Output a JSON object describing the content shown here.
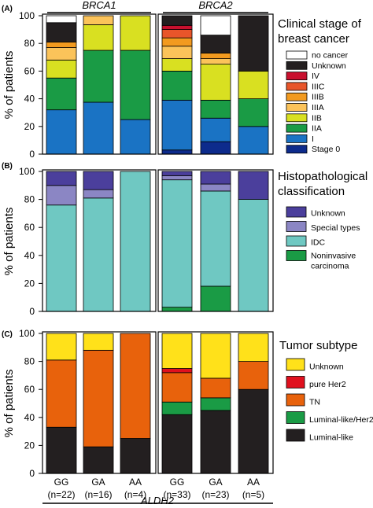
{
  "chart_data": [
    {
      "type": "bar",
      "panel": "(A)",
      "title": "",
      "ylabel": "% of patients",
      "ylim": [
        0,
        100
      ],
      "yticks": [
        "0",
        "20",
        "40",
        "60",
        "80",
        "100"
      ],
      "legend_title": "Clinical stage of breast cancer",
      "groups": [
        {
          "label": "BRCA1",
          "categories": [
            "GG",
            "GA",
            "AA"
          ]
        },
        {
          "label": "BRCA2",
          "categories": [
            "GG",
            "GA",
            "AA"
          ]
        }
      ],
      "series": [
        {
          "name": "Stage 0",
          "color": "#0d2b8c",
          "values": [
            0,
            0,
            0,
            3,
            9,
            0
          ]
        },
        {
          "name": "I",
          "color": "#1a73c4",
          "values": [
            32,
            37.5,
            25,
            36,
            17,
            20
          ]
        },
        {
          "name": "IIA",
          "color": "#1a9b45",
          "values": [
            23,
            37.5,
            50,
            21,
            13,
            20
          ]
        },
        {
          "name": "IIB",
          "color": "#d9e021",
          "values": [
            13,
            18.5,
            25,
            9,
            26,
            20
          ]
        },
        {
          "name": "IIIA",
          "color": "#fbc35a",
          "values": [
            9,
            6.5,
            0,
            9,
            4,
            0
          ]
        },
        {
          "name": "IIIB",
          "color": "#f29a1f",
          "values": [
            4,
            0,
            0,
            6,
            4,
            0
          ]
        },
        {
          "name": "IIIC",
          "color": "#e8552a",
          "values": [
            0,
            0,
            0,
            6,
            0,
            0
          ]
        },
        {
          "name": "IV",
          "color": "#c8102e",
          "values": [
            0,
            0,
            0,
            3,
            0,
            0
          ]
        },
        {
          "name": "Unknown",
          "color": "#231f20",
          "values": [
            14,
            0,
            0,
            7,
            13,
            40
          ]
        },
        {
          "name": "no cancer",
          "color": "#ffffff",
          "values": [
            5,
            0,
            0,
            0,
            14,
            0
          ]
        }
      ]
    },
    {
      "type": "bar",
      "panel": "(B)",
      "title": "",
      "ylabel": "% of patients",
      "ylim": [
        0,
        100
      ],
      "yticks": [
        "0",
        "20",
        "40",
        "60",
        "80",
        "100"
      ],
      "legend_title": "Histopathological classification",
      "groups": [
        {
          "label": "",
          "categories": [
            "GG",
            "GA",
            "AA"
          ]
        },
        {
          "label": "",
          "categories": [
            "GG",
            "GA",
            "AA"
          ]
        }
      ],
      "series": [
        {
          "name": "Noninvasive carcinoma",
          "color": "#1a9b45",
          "values": [
            0,
            0,
            0,
            3,
            18,
            0
          ]
        },
        {
          "name": "IDC",
          "color": "#6fc8c2",
          "values": [
            76,
            81,
            100,
            91,
            68,
            80
          ]
        },
        {
          "name": "Special types",
          "color": "#8b86c4",
          "values": [
            14,
            6,
            0,
            3,
            5,
            0
          ]
        },
        {
          "name": "Unknown",
          "color": "#4b3f9c",
          "values": [
            10,
            13,
            0,
            3,
            9,
            20
          ]
        }
      ]
    },
    {
      "type": "bar",
      "panel": "(C)",
      "title": "",
      "ylabel": "% of patients",
      "ylim": [
        0,
        100
      ],
      "yticks": [
        "0",
        "20",
        "40",
        "60",
        "80",
        "100"
      ],
      "legend_title": "Tumor subtype",
      "groups": [
        {
          "label": "",
          "categories": [
            "GG",
            "GA",
            "AA"
          ]
        },
        {
          "label": "",
          "categories": [
            "GG",
            "GA",
            "AA"
          ]
        }
      ],
      "series": [
        {
          "name": "Luminal-like",
          "color": "#231f20",
          "values": [
            33,
            19,
            25,
            42,
            45,
            60
          ]
        },
        {
          "name": "Luminal-like/Her2+",
          "color": "#1a9b45",
          "values": [
            0,
            0,
            0,
            9,
            9,
            0
          ]
        },
        {
          "name": "TN",
          "color": "#e8620c",
          "values": [
            48,
            69,
            75,
            21,
            14,
            20
          ]
        },
        {
          "name": "pure Her2",
          "color": "#e0101e",
          "values": [
            0,
            0,
            0,
            3,
            0,
            0
          ]
        },
        {
          "name": "Unknown",
          "color": "#ffe11a",
          "values": [
            19,
            12,
            0,
            25,
            32,
            20
          ]
        }
      ],
      "category_labels": [
        {
          "genotype": "GG",
          "n": "(n=22)"
        },
        {
          "genotype": "GA",
          "n": "(n=16)"
        },
        {
          "genotype": "AA",
          "n": "(n=4)"
        },
        {
          "genotype": "GG",
          "n": "(n=33)"
        },
        {
          "genotype": "GA",
          "n": "(n=23)"
        },
        {
          "genotype": "AA",
          "n": "(n=5)"
        }
      ],
      "xlabel": "ALDH2"
    }
  ]
}
